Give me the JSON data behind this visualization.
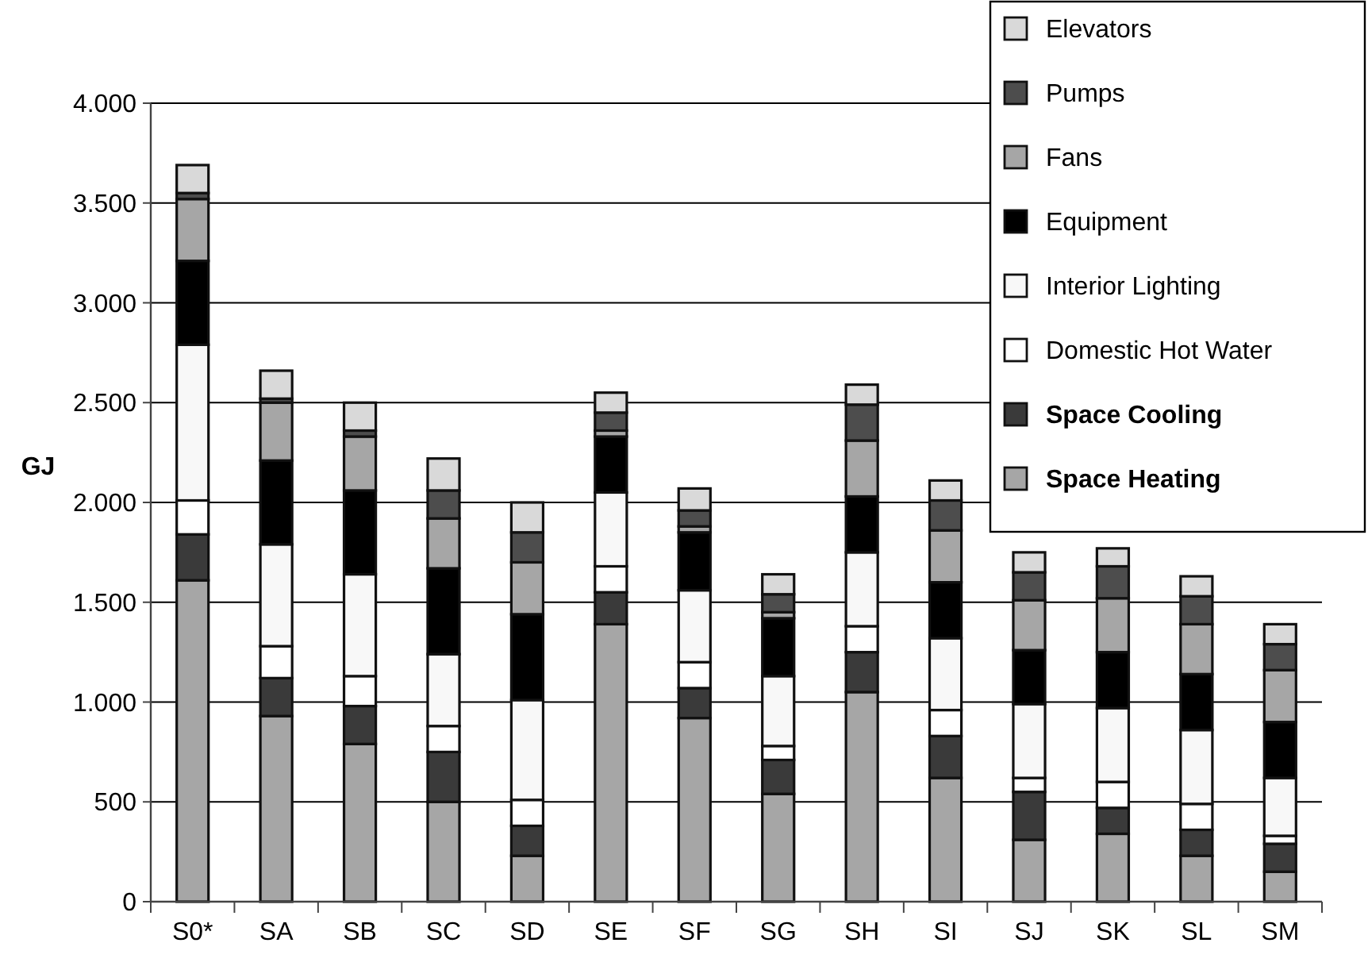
{
  "chart_data": {
    "type": "bar",
    "stacked": true,
    "ylabel": "GJ",
    "categories": [
      "S0*",
      "SA",
      "SB",
      "SC",
      "SD",
      "SE",
      "SF",
      "SG",
      "SH",
      "SI",
      "SJ",
      "SK",
      "SL",
      "SM"
    ],
    "series": [
      {
        "name": "Space Heating",
        "color": "#a6a6a6",
        "values": [
          1610,
          930,
          790,
          500,
          230,
          1390,
          920,
          540,
          1050,
          620,
          310,
          340,
          230,
          150
        ]
      },
      {
        "name": "Space Cooling",
        "color": "#3a3a3a",
        "values": [
          230,
          190,
          190,
          250,
          150,
          160,
          150,
          170,
          200,
          210,
          240,
          130,
          130,
          140
        ]
      },
      {
        "name": "Domestic Hot Water",
        "color": "#ffffff",
        "values": [
          170,
          160,
          150,
          130,
          130,
          130,
          130,
          70,
          130,
          130,
          70,
          130,
          130,
          40
        ]
      },
      {
        "name": "Interior Lighting",
        "color": "#f8f8f8",
        "values": [
          780,
          510,
          510,
          360,
          500,
          370,
          360,
          350,
          370,
          360,
          370,
          370,
          370,
          290
        ]
      },
      {
        "name": "Equipment",
        "color": "#000000",
        "values": [
          420,
          420,
          420,
          430,
          430,
          280,
          290,
          290,
          280,
          280,
          270,
          280,
          280,
          280
        ]
      },
      {
        "name": "Fans",
        "color": "#a6a6a6",
        "values": [
          310,
          290,
          270,
          250,
          260,
          30,
          30,
          30,
          280,
          260,
          250,
          270,
          250,
          260
        ]
      },
      {
        "name": "Pumps",
        "color": "#4d4d4d",
        "values": [
          30,
          20,
          30,
          140,
          150,
          90,
          80,
          90,
          180,
          150,
          140,
          160,
          140,
          130
        ]
      },
      {
        "name": "Elevators",
        "color": "#d9d9d9",
        "values": [
          140,
          140,
          140,
          160,
          150,
          100,
          110,
          100,
          100,
          100,
          100,
          90,
          100,
          100
        ]
      }
    ],
    "ylim": [
      0,
      4000
    ],
    "yticks": [
      {
        "value": 0,
        "label": "0"
      },
      {
        "value": 500,
        "label": "500"
      },
      {
        "value": 1000,
        "label": "1.000"
      },
      {
        "value": 1500,
        "label": "1.500"
      },
      {
        "value": 2000,
        "label": "2.000"
      },
      {
        "value": 2500,
        "label": "2.500"
      },
      {
        "value": 3000,
        "label": "3.000"
      },
      {
        "value": 3500,
        "label": "3.500"
      },
      {
        "value": 4000,
        "label": "4.000"
      }
    ],
    "grid": "y",
    "legend": "top right"
  }
}
